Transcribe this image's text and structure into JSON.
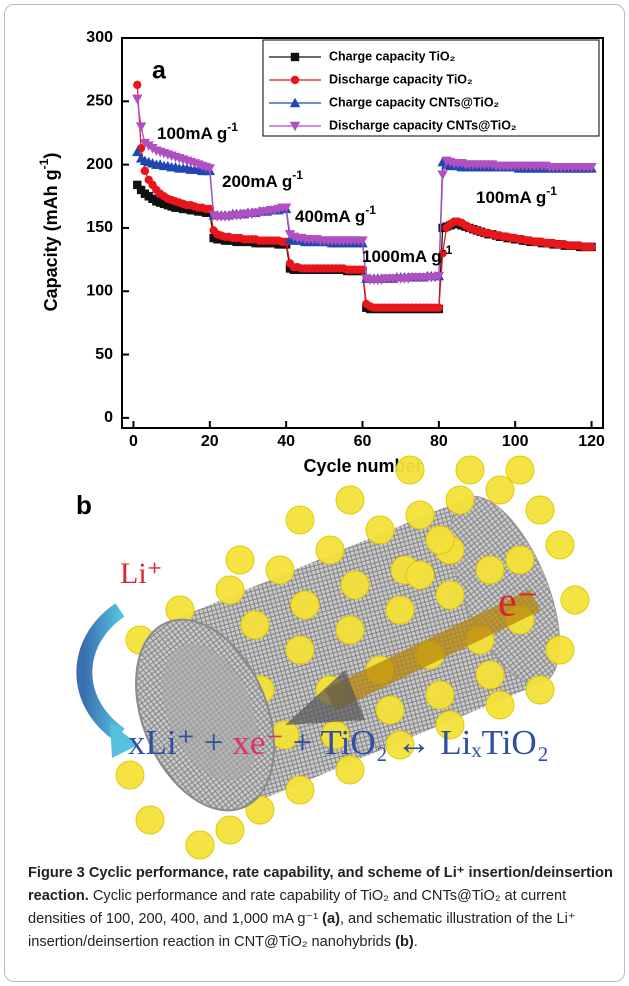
{
  "chart_data": {
    "type": "line",
    "panel": "a",
    "xlabel": "Cycle number",
    "ylabel": "Capacity (mAh g",
    "ylabel_sup": "-1",
    "ylabel_end": ")",
    "xlim": [
      -3,
      123
    ],
    "ylim": [
      -8,
      300
    ],
    "xticks": [
      0,
      20,
      40,
      60,
      80,
      100,
      120
    ],
    "yticks": [
      0,
      50,
      100,
      150,
      200,
      250,
      300
    ],
    "legend": "upper right",
    "annotations": [
      {
        "text": "100mA g",
        "sup": "-1"
      },
      {
        "text": "200mA g",
        "sup": "-1"
      },
      {
        "text": "400mA g",
        "sup": "-1"
      },
      {
        "text": "1000mA g",
        "sup": "-1"
      },
      {
        "text": "100mA g",
        "sup": "-1"
      }
    ],
    "x": [
      1,
      2,
      3,
      4,
      5,
      6,
      7,
      8,
      9,
      10,
      11,
      12,
      13,
      14,
      15,
      16,
      17,
      18,
      19,
      20,
      21,
      22,
      23,
      24,
      25,
      26,
      27,
      28,
      29,
      30,
      31,
      32,
      33,
      34,
      35,
      36,
      37,
      38,
      39,
      40,
      41,
      42,
      43,
      44,
      45,
      46,
      47,
      48,
      49,
      50,
      51,
      52,
      53,
      54,
      55,
      56,
      57,
      58,
      59,
      60,
      61,
      62,
      63,
      64,
      65,
      66,
      67,
      68,
      69,
      70,
      71,
      72,
      73,
      74,
      75,
      76,
      77,
      78,
      79,
      80,
      81,
      82,
      83,
      84,
      85,
      86,
      87,
      88,
      89,
      90,
      91,
      92,
      93,
      94,
      95,
      96,
      97,
      98,
      99,
      100,
      101,
      102,
      103,
      104,
      105,
      106,
      107,
      108,
      109,
      110,
      111,
      112,
      113,
      114,
      115,
      116,
      117,
      118,
      119,
      120
    ],
    "series": [
      {
        "name": "Charge capacity TiO₂",
        "color": "#111111",
        "marker": "s",
        "values": [
          184,
          180,
          177,
          175,
          173,
          171,
          170,
          169,
          168,
          167,
          166,
          166,
          165,
          165,
          164,
          164,
          163,
          163,
          162,
          162,
          142,
          141,
          141,
          140,
          140,
          140,
          139,
          139,
          139,
          139,
          139,
          138,
          138,
          138,
          138,
          138,
          138,
          137,
          137,
          137,
          118,
          117,
          117,
          117,
          117,
          117,
          117,
          117,
          117,
          117,
          117,
          117,
          117,
          117,
          117,
          116,
          116,
          116,
          116,
          116,
          87,
          86,
          86,
          86,
          86,
          86,
          86,
          86,
          86,
          86,
          86,
          86,
          86,
          86,
          86,
          86,
          86,
          86,
          86,
          86,
          150,
          151,
          152,
          153,
          153,
          152,
          151,
          150,
          149,
          148,
          147,
          146,
          145,
          145,
          144,
          143,
          143,
          142,
          142,
          141,
          141,
          140,
          140,
          139,
          139,
          139,
          138,
          138,
          138,
          137,
          137,
          137,
          136,
          136,
          136,
          136,
          135,
          135,
          135,
          135
        ]
      },
      {
        "name": "Discharge capacity TiO₂",
        "color": "#e8161b",
        "marker": "o",
        "values": [
          263,
          213,
          195,
          188,
          184,
          180,
          177,
          175,
          173,
          172,
          171,
          170,
          169,
          168,
          168,
          167,
          166,
          166,
          165,
          165,
          148,
          145,
          144,
          143,
          143,
          142,
          142,
          142,
          141,
          141,
          141,
          141,
          140,
          140,
          140,
          140,
          140,
          140,
          139,
          139,
          122,
          119,
          119,
          118,
          118,
          118,
          118,
          118,
          118,
          118,
          118,
          118,
          118,
          118,
          118,
          117,
          117,
          117,
          117,
          117,
          90,
          88,
          87,
          87,
          87,
          87,
          87,
          87,
          87,
          87,
          87,
          87,
          87,
          87,
          87,
          87,
          87,
          87,
          87,
          87,
          130,
          150,
          153,
          155,
          155,
          154,
          152,
          150,
          149,
          148,
          147,
          146,
          146,
          145,
          144,
          144,
          143,
          143,
          142,
          142,
          141,
          141,
          140,
          140,
          139,
          139,
          139,
          138,
          138,
          138,
          137,
          137,
          137,
          136,
          136,
          136,
          136,
          135,
          135,
          135
        ]
      },
      {
        "name": "Charge capacity CNTs@TiO₂",
        "color": "#1f47b0",
        "marker": "^",
        "values": [
          210,
          205,
          203,
          202,
          201,
          200,
          200,
          199,
          199,
          198,
          198,
          197,
          197,
          197,
          196,
          196,
          196,
          195,
          195,
          195,
          160,
          160,
          160,
          160,
          160,
          161,
          161,
          161,
          161,
          162,
          162,
          162,
          163,
          163,
          163,
          164,
          164,
          164,
          165,
          165,
          141,
          140,
          140,
          140,
          139,
          139,
          139,
          139,
          139,
          139,
          139,
          138,
          138,
          138,
          138,
          138,
          138,
          138,
          138,
          138,
          110,
          110,
          110,
          110,
          110,
          110,
          110,
          110,
          111,
          111,
          111,
          111,
          111,
          111,
          111,
          111,
          112,
          112,
          112,
          112,
          202,
          200,
          199,
          199,
          199,
          198,
          198,
          198,
          198,
          198,
          198,
          198,
          198,
          198,
          198,
          198,
          198,
          198,
          198,
          198,
          197,
          197,
          197,
          197,
          197,
          197,
          197,
          197,
          197,
          197,
          197,
          197,
          197,
          197,
          197,
          197,
          197,
          197,
          197,
          197
        ]
      },
      {
        "name": "Discharge capacity CNTs@TiO₂",
        "color": "#b04fc0",
        "marker": "v",
        "values": [
          252,
          230,
          217,
          215,
          213,
          211,
          210,
          209,
          208,
          207,
          206,
          205,
          204,
          203,
          202,
          201,
          200,
          199,
          198,
          197,
          160,
          159,
          159,
          159,
          159,
          160,
          160,
          160,
          161,
          161,
          161,
          162,
          162,
          163,
          163,
          164,
          164,
          165,
          166,
          166,
          145,
          143,
          142,
          142,
          141,
          141,
          141,
          141,
          140,
          140,
          140,
          140,
          140,
          140,
          140,
          140,
          140,
          140,
          140,
          140,
          110,
          109,
          109,
          109,
          109,
          110,
          110,
          110,
          110,
          110,
          110,
          110,
          111,
          111,
          111,
          111,
          111,
          111,
          111,
          112,
          192,
          203,
          202,
          201,
          201,
          201,
          200,
          200,
          200,
          200,
          200,
          200,
          200,
          200,
          199,
          199,
          199,
          199,
          199,
          199,
          199,
          199,
          199,
          199,
          199,
          199,
          199,
          199,
          198,
          198,
          198,
          198,
          198,
          198,
          198,
          198,
          198,
          198,
          198,
          198
        ]
      }
    ]
  },
  "scheme": {
    "panel": "b",
    "ion": "Li⁺",
    "electron": "e⁻",
    "equation": [
      "xLi⁺ + ",
      "xe⁻",
      " + TiO₂ ↔ LiₓTiO₂"
    ]
  },
  "caption": {
    "title": "Figure 3 Cyclic performance, rate capability, and scheme of Li⁺ insertion/deinsertion reaction.",
    "body": [
      {
        "text": " Cyclic performance and rate capability of TiO₂ and CNTs@TiO₂ at current densities of 100, 200, 400, and 1,000 mA g⁻¹ ",
        "bold": false
      },
      {
        "text": "(a)",
        "bold": true
      },
      {
        "text": ", and schematic illustration of the Li⁺ insertion/deinsertion reaction in CNT@TiO₂ nanohybrids ",
        "bold": false
      },
      {
        "text": "(b)",
        "bold": true
      },
      {
        "text": ".",
        "bold": false
      }
    ]
  }
}
